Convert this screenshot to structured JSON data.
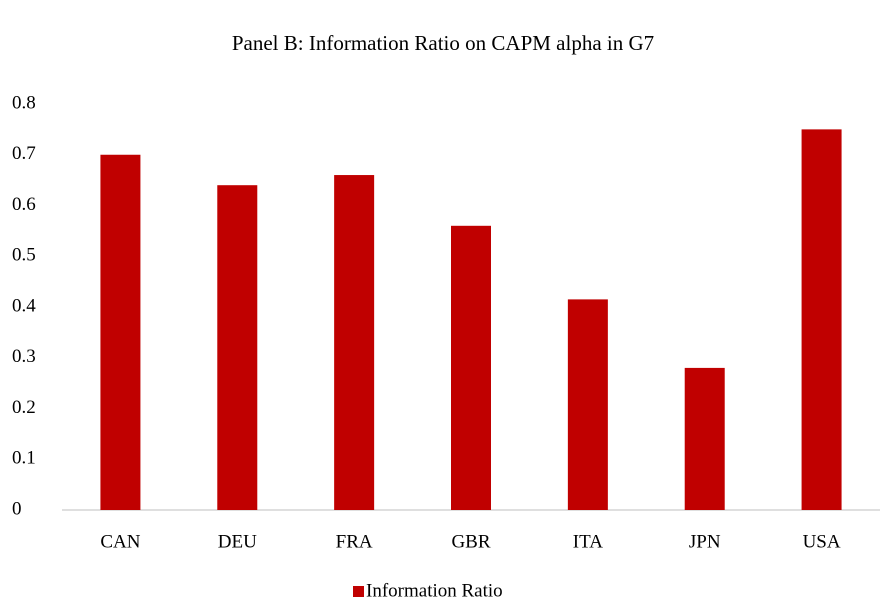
{
  "chart_data": {
    "type": "bar",
    "title": "Panel B: Information Ratio on CAPM alpha in G7",
    "categories": [
      "CAN",
      "DEU",
      "FRA",
      "GBR",
      "ITA",
      "JPN",
      "USA"
    ],
    "series": [
      {
        "name": "Information Ratio",
        "color": "#c00000",
        "values": [
          0.7,
          0.64,
          0.66,
          0.56,
          0.415,
          0.28,
          0.75
        ]
      }
    ],
    "ylim": [
      0,
      0.8
    ],
    "yticks": [
      0,
      0.1,
      0.2,
      0.3,
      0.4,
      0.5,
      0.6,
      0.7,
      0.8
    ],
    "grid": false,
    "legend": "bottom"
  }
}
